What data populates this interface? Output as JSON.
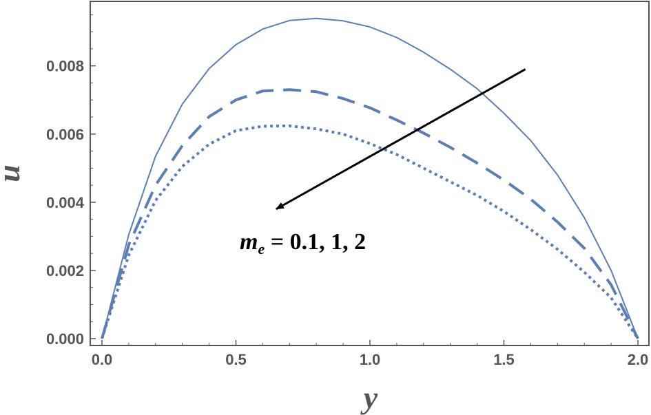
{
  "chart_data": {
    "type": "line",
    "xlabel": "y",
    "ylabel": "u",
    "xlim": [
      0,
      2
    ],
    "ylim": [
      -0.0001,
      0.00985
    ],
    "xticks": [
      "0.0",
      "0.5",
      "1.0",
      "1.5",
      "2.0"
    ],
    "yticks": [
      "0.000",
      "0.002",
      "0.004",
      "0.006",
      "0.008"
    ],
    "grid": false,
    "annotation": {
      "variable": "m",
      "subscript": "e",
      "text": " = 0.1,  1,  2",
      "arrow": {
        "from": [
          1.58,
          0.0079
        ],
        "to": [
          0.65,
          0.0038
        ]
      }
    },
    "x": [
      0,
      0.1,
      0.2,
      0.3,
      0.4,
      0.5,
      0.6,
      0.7,
      0.8,
      0.9,
      1.0,
      1.1,
      1.2,
      1.3,
      1.4,
      1.5,
      1.6,
      1.7,
      1.8,
      1.9,
      2.0
    ],
    "series": [
      {
        "style": "solid",
        "color": "#5b7fb4",
        "values": [
          0,
          0.00305,
          0.00535,
          0.00688,
          0.00792,
          0.00862,
          0.00908,
          0.00933,
          0.00939,
          0.00932,
          0.00914,
          0.00883,
          0.0084,
          0.0079,
          0.00733,
          0.00661,
          0.00581,
          0.0048,
          0.00355,
          0.002,
          0
        ]
      },
      {
        "style": "dashed",
        "color": "#5b7fb4",
        "values": [
          0,
          0.00275,
          0.0045,
          0.00566,
          0.00651,
          0.007,
          0.00726,
          0.0073,
          0.00724,
          0.00704,
          0.00677,
          0.00641,
          0.00603,
          0.00561,
          0.00515,
          0.00465,
          0.00409,
          0.00342,
          0.00265,
          0.00158,
          0
        ]
      },
      {
        "style": "dotted",
        "color": "#5b7fb4",
        "values": [
          0,
          0.00245,
          0.00405,
          0.00505,
          0.0057,
          0.0061,
          0.00623,
          0.00624,
          0.00615,
          0.006,
          0.00572,
          0.0054,
          0.005,
          0.0046,
          0.0042,
          0.00373,
          0.0032,
          0.00262,
          0.00195,
          0.0012,
          0
        ]
      }
    ]
  }
}
